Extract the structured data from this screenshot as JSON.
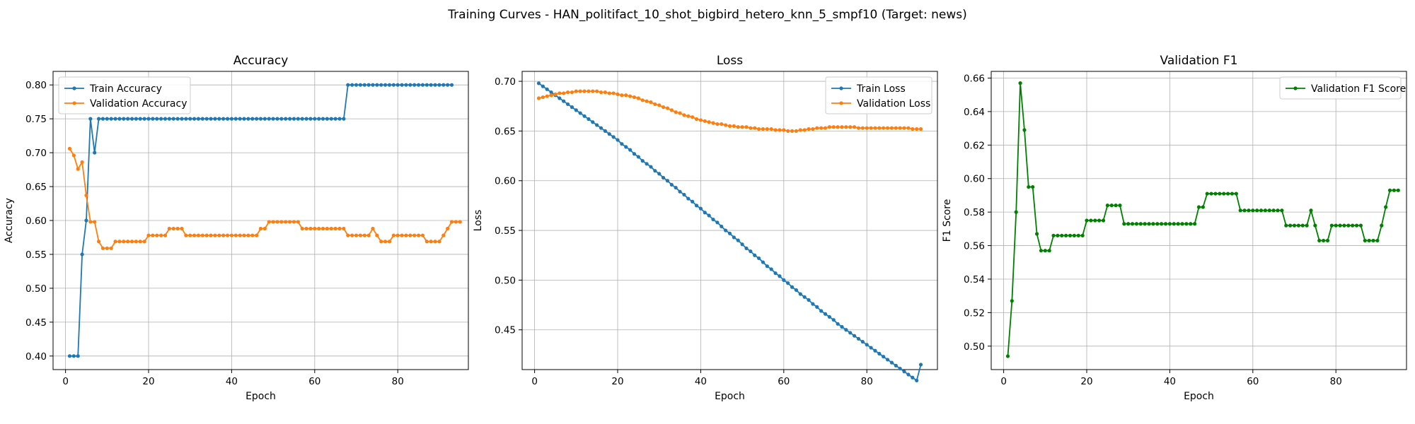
{
  "figure": {
    "title": "Training Curves - HAN_politifact_10_shot_bigbird_hetero_knn_5_smpf10 (Target: news)"
  },
  "chart_data": [
    {
      "type": "line",
      "title": "Accuracy",
      "xlabel": "Epoch",
      "ylabel": "Accuracy",
      "xlim": [
        -3,
        97
      ],
      "ylim": [
        0.38,
        0.82
      ],
      "xticks": [
        0,
        20,
        40,
        60,
        80
      ],
      "yticks": [
        0.4,
        0.45,
        0.5,
        0.55,
        0.6,
        0.65,
        0.7,
        0.75,
        0.8
      ],
      "ytick_labels": [
        "0.40",
        "0.45",
        "0.50",
        "0.55",
        "0.60",
        "0.65",
        "0.70",
        "0.75",
        "0.80"
      ],
      "grid": true,
      "legend": "upper-left",
      "x_start": 1,
      "x_end": 93,
      "series": [
        {
          "name": "Train Accuracy",
          "color": "#1f77b4",
          "values": [
            0.4,
            0.4,
            0.4,
            0.55,
            0.6,
            0.75,
            0.7,
            0.75,
            0.75,
            0.75,
            0.75,
            0.75,
            0.75,
            0.75,
            0.75,
            0.75,
            0.75,
            0.75,
            0.75,
            0.75,
            0.75,
            0.75,
            0.75,
            0.75,
            0.75,
            0.75,
            0.75,
            0.75,
            0.75,
            0.75,
            0.75,
            0.75,
            0.75,
            0.75,
            0.75,
            0.75,
            0.75,
            0.75,
            0.75,
            0.75,
            0.75,
            0.75,
            0.75,
            0.75,
            0.75,
            0.75,
            0.75,
            0.75,
            0.75,
            0.75,
            0.75,
            0.75,
            0.75,
            0.75,
            0.75,
            0.75,
            0.75,
            0.75,
            0.75,
            0.75,
            0.75,
            0.75,
            0.75,
            0.75,
            0.75,
            0.75,
            0.75,
            0.8,
            0.8,
            0.8,
            0.8,
            0.8,
            0.8,
            0.8,
            0.8,
            0.8,
            0.8,
            0.8,
            0.8,
            0.8,
            0.8,
            0.8,
            0.8,
            0.8,
            0.8,
            0.8,
            0.8,
            0.8,
            0.8,
            0.8,
            0.8,
            0.8,
            0.8
          ]
        },
        {
          "name": "Validation Accuracy",
          "color": "#ff7f0e",
          "values": [
            0.706,
            0.696,
            0.676,
            0.686,
            0.637,
            0.598,
            0.598,
            0.569,
            0.559,
            0.559,
            0.559,
            0.569,
            0.569,
            0.569,
            0.569,
            0.569,
            0.569,
            0.569,
            0.569,
            0.578,
            0.578,
            0.578,
            0.578,
            0.578,
            0.588,
            0.588,
            0.588,
            0.588,
            0.578,
            0.578,
            0.578,
            0.578,
            0.578,
            0.578,
            0.578,
            0.578,
            0.578,
            0.578,
            0.578,
            0.578,
            0.578,
            0.578,
            0.578,
            0.578,
            0.578,
            0.578,
            0.588,
            0.588,
            0.598,
            0.598,
            0.598,
            0.598,
            0.598,
            0.598,
            0.598,
            0.598,
            0.588,
            0.588,
            0.588,
            0.588,
            0.588,
            0.588,
            0.588,
            0.588,
            0.588,
            0.588,
            0.588,
            0.578,
            0.578,
            0.578,
            0.578,
            0.578,
            0.578,
            0.588,
            0.578,
            0.569,
            0.569,
            0.569,
            0.578,
            0.578,
            0.578,
            0.578,
            0.578,
            0.578,
            0.578,
            0.578,
            0.569,
            0.569,
            0.569,
            0.569,
            0.578,
            0.588,
            0.598,
            0.598,
            0.598
          ]
        }
      ]
    },
    {
      "type": "line",
      "title": "Loss",
      "xlabel": "Epoch",
      "ylabel": "Loss",
      "xlim": [
        -3,
        97
      ],
      "ylim": [
        0.41,
        0.71
      ],
      "xticks": [
        0,
        20,
        40,
        60,
        80
      ],
      "yticks": [
        0.45,
        0.5,
        0.55,
        0.6,
        0.65,
        0.7
      ],
      "ytick_labels": [
        "0.45",
        "0.50",
        "0.55",
        "0.60",
        "0.65",
        "0.70"
      ],
      "grid": true,
      "legend": "upper-right",
      "x_start": 1,
      "x_end": 93,
      "series": [
        {
          "name": "Train Loss",
          "color": "#1f77b4",
          "values": [
            0.698,
            0.695,
            0.692,
            0.689,
            0.686,
            0.683,
            0.68,
            0.677,
            0.674,
            0.671,
            0.668,
            0.665,
            0.662,
            0.659,
            0.656,
            0.653,
            0.65,
            0.647,
            0.644,
            0.641,
            0.637,
            0.634,
            0.631,
            0.627,
            0.624,
            0.62,
            0.617,
            0.614,
            0.61,
            0.607,
            0.603,
            0.6,
            0.596,
            0.593,
            0.589,
            0.586,
            0.582,
            0.579,
            0.575,
            0.572,
            0.568,
            0.565,
            0.561,
            0.558,
            0.554,
            0.55,
            0.547,
            0.543,
            0.54,
            0.536,
            0.532,
            0.529,
            0.525,
            0.522,
            0.518,
            0.514,
            0.511,
            0.507,
            0.504,
            0.5,
            0.497,
            0.493,
            0.49,
            0.486,
            0.483,
            0.48,
            0.476,
            0.473,
            0.469,
            0.466,
            0.463,
            0.46,
            0.456,
            0.453,
            0.45,
            0.447,
            0.444,
            0.441,
            0.438,
            0.435,
            0.432,
            0.429,
            0.426,
            0.423,
            0.42,
            0.417,
            0.414,
            0.411,
            0.408,
            0.405,
            0.402,
            0.399,
            0.415
          ]
        },
        {
          "name": "Validation Loss",
          "color": "#ff7f0e",
          "values": [
            0.683,
            0.684,
            0.685,
            0.686,
            0.687,
            0.688,
            0.688,
            0.689,
            0.689,
            0.69,
            0.69,
            0.69,
            0.69,
            0.69,
            0.69,
            0.689,
            0.689,
            0.688,
            0.688,
            0.687,
            0.686,
            0.686,
            0.685,
            0.684,
            0.683,
            0.681,
            0.68,
            0.679,
            0.677,
            0.676,
            0.674,
            0.673,
            0.671,
            0.669,
            0.668,
            0.666,
            0.665,
            0.664,
            0.662,
            0.661,
            0.66,
            0.659,
            0.658,
            0.657,
            0.657,
            0.656,
            0.655,
            0.655,
            0.654,
            0.654,
            0.654,
            0.653,
            0.653,
            0.652,
            0.652,
            0.652,
            0.652,
            0.651,
            0.651,
            0.651,
            0.65,
            0.65,
            0.65,
            0.651,
            0.651,
            0.652,
            0.652,
            0.653,
            0.653,
            0.653,
            0.654,
            0.654,
            0.654,
            0.654,
            0.654,
            0.654,
            0.654,
            0.653,
            0.653,
            0.653,
            0.653,
            0.653,
            0.653,
            0.653,
            0.653,
            0.653,
            0.653,
            0.653,
            0.653,
            0.653,
            0.652,
            0.652,
            0.652
          ]
        }
      ]
    },
    {
      "type": "line",
      "title": "Validation F1",
      "xlabel": "Epoch",
      "ylabel": "F1 Score",
      "xlim": [
        -3,
        97
      ],
      "ylim": [
        0.486,
        0.664
      ],
      "xticks": [
        0,
        20,
        40,
        60,
        80
      ],
      "yticks": [
        0.5,
        0.52,
        0.54,
        0.56,
        0.58,
        0.6,
        0.62,
        0.64,
        0.66
      ],
      "ytick_labels": [
        "0.50",
        "0.52",
        "0.54",
        "0.56",
        "0.58",
        "0.60",
        "0.62",
        "0.64",
        "0.66"
      ],
      "grid": true,
      "legend": "upper-right",
      "x_start": 1,
      "x_end": 93,
      "series": [
        {
          "name": "Validation F1 Score",
          "color": "#008000",
          "values": [
            0.494,
            0.527,
            0.58,
            0.657,
            0.629,
            0.595,
            0.595,
            0.567,
            0.557,
            0.557,
            0.557,
            0.566,
            0.566,
            0.566,
            0.566,
            0.566,
            0.566,
            0.566,
            0.566,
            0.575,
            0.575,
            0.575,
            0.575,
            0.575,
            0.584,
            0.584,
            0.584,
            0.584,
            0.573,
            0.573,
            0.573,
            0.573,
            0.573,
            0.573,
            0.573,
            0.573,
            0.573,
            0.573,
            0.573,
            0.573,
            0.573,
            0.573,
            0.573,
            0.573,
            0.573,
            0.573,
            0.583,
            0.583,
            0.591,
            0.591,
            0.591,
            0.591,
            0.591,
            0.591,
            0.591,
            0.591,
            0.581,
            0.581,
            0.581,
            0.581,
            0.581,
            0.581,
            0.581,
            0.581,
            0.581,
            0.581,
            0.581,
            0.572,
            0.572,
            0.572,
            0.572,
            0.572,
            0.572,
            0.581,
            0.572,
            0.563,
            0.563,
            0.563,
            0.572,
            0.572,
            0.572,
            0.572,
            0.572,
            0.572,
            0.572,
            0.572,
            0.563,
            0.563,
            0.563,
            0.563,
            0.572,
            0.583,
            0.593,
            0.593,
            0.593
          ]
        }
      ]
    }
  ]
}
